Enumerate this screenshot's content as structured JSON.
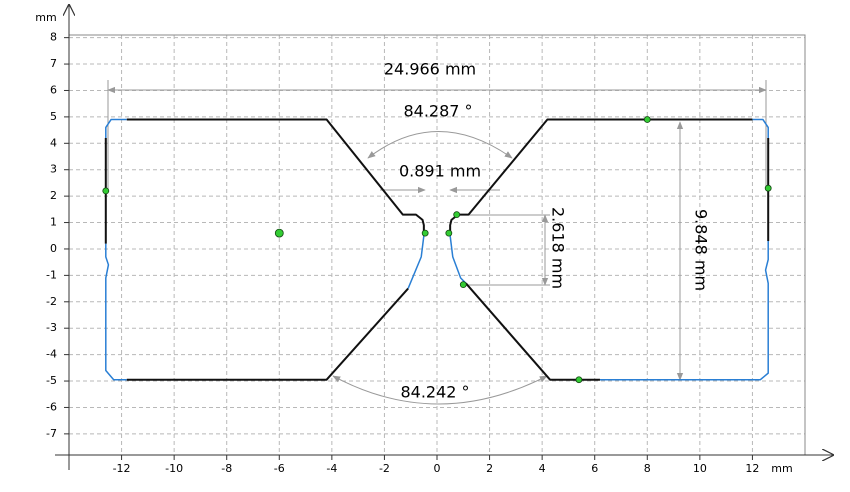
{
  "chart_data": {
    "type": "line",
    "x_label": "mm",
    "y_label": "mm",
    "xlim": [
      -14,
      14
    ],
    "ylim": [
      -7.8,
      8.1
    ],
    "xticks": [
      -12,
      -10,
      -8,
      -6,
      -4,
      -2,
      0,
      2,
      4,
      6,
      8,
      10,
      12
    ],
    "yticks": [
      -7,
      -6,
      -5,
      -4,
      -3,
      -2,
      -1,
      0,
      1,
      2,
      3,
      4,
      5,
      6,
      7,
      8
    ],
    "grid": true,
    "series": [
      {
        "color": "#2a7fd4",
        "x": [
          -11.8,
          -12.4,
          -12.6,
          -12.6,
          null,
          -12.6,
          -12.6,
          -12.5,
          -12.6,
          -12.6,
          -12.3,
          -11.8,
          null,
          -0.5,
          -0.6,
          -1.1,
          null,
          0.5,
          0.6,
          0.9,
          1.1,
          null,
          12,
          12.4,
          12.6,
          12.6,
          null,
          12.6,
          12.6,
          12.5,
          12.6,
          12.6,
          12.3,
          6.2
        ],
        "values": [
          4.9,
          4.9,
          4.6,
          4.2,
          null,
          0.2,
          -0.3,
          -0.6,
          -1.1,
          -4.6,
          -4.95,
          -4.95,
          null,
          0.5,
          -0.3,
          -1.5,
          null,
          0.5,
          -0.3,
          -1.1,
          -1.3,
          null,
          4.9,
          4.9,
          4.6,
          4.2,
          null,
          0.3,
          -0.4,
          -0.8,
          -1.3,
          -4.7,
          -4.95,
          -4.95
        ]
      },
      {
        "color": "#111111",
        "x": [
          -12.6,
          -12.6,
          null,
          -11.8,
          -4.2,
          -1.3,
          -0.8,
          -0.55,
          -0.5,
          -0.5,
          null,
          -11.8,
          -4.2,
          -1.1,
          null,
          0.5,
          0.5,
          0.55,
          0.8,
          1.2,
          4.2,
          12,
          null,
          12.6,
          12.6,
          null,
          1.1,
          4.3,
          6.2
        ],
        "values": [
          4.2,
          0.2,
          null,
          4.9,
          4.9,
          1.3,
          1.3,
          1.1,
          0.9,
          0.5,
          null,
          -4.95,
          -4.95,
          -1.5,
          null,
          0.5,
          0.9,
          1.1,
          1.3,
          1.3,
          4.9,
          4.9,
          null,
          4.2,
          0.3,
          null,
          -1.3,
          -4.95,
          -4.95
        ]
      }
    ],
    "markers": {
      "color": "#33cc33",
      "x": [
        -6,
        -0.45,
        0.45,
        0.75,
        1,
        8,
        12.6,
        -12.6,
        5.4
      ],
      "values": [
        0.6,
        0.6,
        0.6,
        1.3,
        -1.35,
        4.9,
        2.3,
        2.2,
        -4.95
      ]
    },
    "annotations": [
      "24.966 mm",
      "84.287 °",
      "0.891 mm",
      "2.618 mm",
      "9.848 mm",
      "84.242 °"
    ]
  }
}
